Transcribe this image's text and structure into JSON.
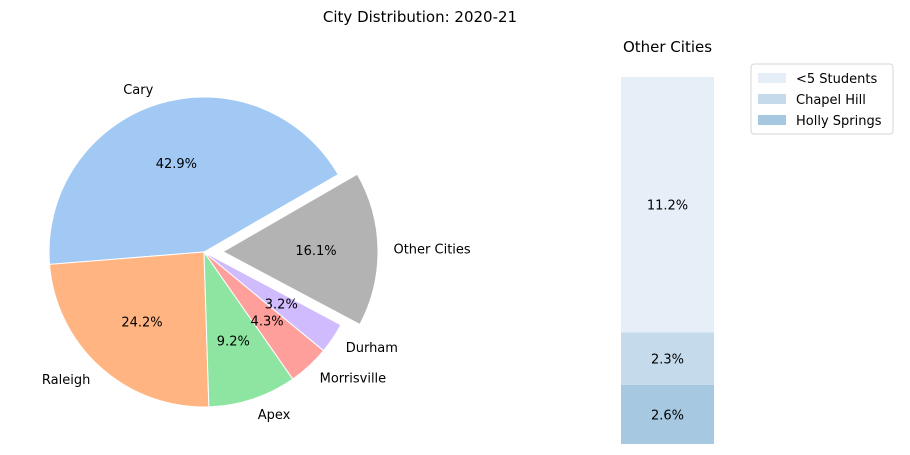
{
  "chart_data": [
    {
      "type": "pie",
      "title": "City Distribution: 2020-21",
      "categories": [
        "Cary",
        "Raleigh",
        "Apex",
        "Morrisville",
        "Durham",
        "Other Cities"
      ],
      "values": [
        42.9,
        24.2,
        9.2,
        4.3,
        3.2,
        16.1
      ],
      "value_labels": [
        "42.9%",
        "24.2%",
        "9.2%",
        "4.3%",
        "3.2%",
        "16.1%"
      ],
      "colors": [
        "#a1c9f4",
        "#ffb482",
        "#8de5a1",
        "#ff9f9b",
        "#d0bbff",
        "#b3b3b3"
      ],
      "exploded": "Other Cities",
      "start_angle_deg": 30
    },
    {
      "type": "bar",
      "stacked": true,
      "title": "Other Cities",
      "series": [
        {
          "name": "Holly Springs",
          "value": 2.6,
          "label": "2.6%",
          "color": "#a6c8e0"
        },
        {
          "name": "Chapel Hill",
          "value": 2.3,
          "label": "2.3%",
          "color": "#c5dbec"
        },
        {
          "name": "<5 Students",
          "value": 11.2,
          "label": "11.2%",
          "color": "#e6eff8"
        }
      ],
      "legend_order": [
        "<5 Students",
        "Chapel Hill",
        "Holly Springs"
      ],
      "legend_position": "upper-right",
      "axes_visible": false
    }
  ]
}
